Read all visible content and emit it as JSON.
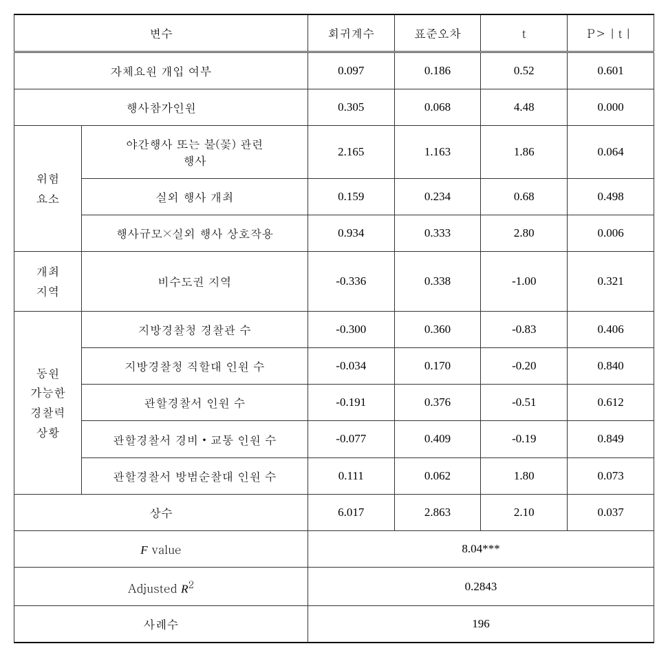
{
  "headers": {
    "variable": "변수",
    "coef": "회귀계수",
    "stderr": "표준오차",
    "t": "t",
    "pval": "P＞｜t｜"
  },
  "rows": {
    "self_intervention": {
      "label": "자체요원 개입 여부",
      "coef": "0.097",
      "stderr": "0.186",
      "t": "0.52",
      "pval": "0.601"
    },
    "participants": {
      "label": "행사참가인원",
      "coef": "0.305",
      "stderr": "0.068",
      "t": "4.48",
      "pval": "0.000"
    },
    "risk_group": "위험\n요소",
    "risk_night": {
      "label": "야간행사 또는 불(꽃) 관련\n행사",
      "coef": "2.165",
      "stderr": "1.163",
      "t": "1.86",
      "pval": "0.064"
    },
    "risk_outdoor": {
      "label": "실외 행사 개최",
      "coef": "0.159",
      "stderr": "0.234",
      "t": "0.68",
      "pval": "0.498"
    },
    "risk_interaction": {
      "label": "행사규모×실외 행사 상호작용",
      "coef": "0.934",
      "stderr": "0.333",
      "t": "2.80",
      "pval": "0.006"
    },
    "region_group": "개최\n지역",
    "region_nonmetro": {
      "label": "비수도권 지역",
      "coef": "-0.336",
      "stderr": "0.338",
      "t": "-1.00",
      "pval": "0.321"
    },
    "police_group": "동원\n가능한\n경찰력\n상황",
    "police_regional": {
      "label": "지방경찰청 경찰관 수",
      "coef": "-0.300",
      "stderr": "0.360",
      "t": "-0.83",
      "pval": "0.406"
    },
    "police_direct": {
      "label": "지방경찰청 직할대 인원 수",
      "coef": "-0.034",
      "stderr": "0.170",
      "t": "-0.20",
      "pval": "0.840"
    },
    "police_station": {
      "label": "관할경찰서 인원 수",
      "coef": "-0.191",
      "stderr": "0.376",
      "t": "-0.51",
      "pval": "0.612"
    },
    "police_traffic": {
      "label": "관할경찰서 경비・교통 인원 수",
      "coef": "-0.077",
      "stderr": "0.409",
      "t": "-0.19",
      "pval": "0.849"
    },
    "police_patrol": {
      "label": "관할경찰서 방범순찰대 인원 수",
      "coef": "0.111",
      "stderr": "0.062",
      "t": "1.80",
      "pval": "0.073"
    },
    "constant": {
      "label": "상수",
      "coef": "6.017",
      "stderr": "2.863",
      "t": "2.10",
      "pval": "0.037"
    }
  },
  "summary": {
    "f_label_prefix": "F",
    "f_label_suffix": " value",
    "f_value": "8.04***",
    "r2_label_prefix": "Adjusted ",
    "r2_label_italic": "R",
    "r2_label_sup": "2",
    "r2_value": "0.2843",
    "n_label": "사례수",
    "n_value": "196"
  },
  "layout": {
    "col_widths": {
      "group": 98,
      "label": 330,
      "num": 126
    }
  }
}
